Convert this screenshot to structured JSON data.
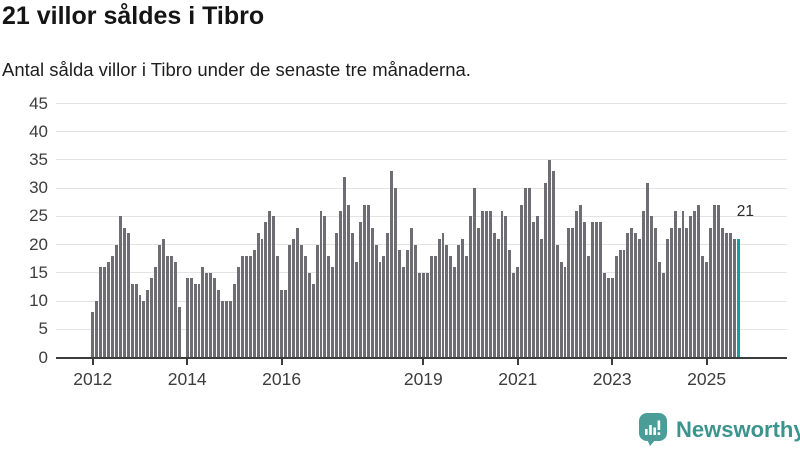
{
  "header": {
    "title": "21 villor såldes i Tibro",
    "subtitle": "Antal sålda villor i Tibro under de senaste tre månaderna."
  },
  "footer": {
    "brand": "Newsworthy",
    "logo_icon": "newsworthy-bar-chart-speech-bubble-icon"
  },
  "colors": {
    "bar": "#6e6d73",
    "highlight": "#12a19f",
    "gridline": "#e3e3e3",
    "axis": "#3d3d3d",
    "title_text": "#151515",
    "brand_teal": "#3d948f",
    "logo_bubble": "#4a9e97"
  },
  "chart_data": {
    "type": "bar",
    "title": "21 villor såldes i Tibro",
    "subtitle": "Antal sålda villor i Tibro under de senaste tre månaderna.",
    "xlabel": "",
    "ylabel": "",
    "ylim": [
      0,
      45
    ],
    "grid": "horizontal",
    "y_ticks": [
      0,
      5,
      10,
      15,
      20,
      25,
      30,
      35,
      40,
      45
    ],
    "x_tick_labels": [
      "2012",
      "2014",
      "2016",
      "2019",
      "2021",
      "2023",
      "2025"
    ],
    "x_tick_month_indices": [
      0,
      24,
      48,
      84,
      108,
      132,
      156
    ],
    "start_year": 2012,
    "values": [
      8,
      10,
      16,
      16,
      17,
      18,
      20,
      25,
      23,
      22,
      13,
      13,
      11,
      10,
      12,
      14,
      16,
      20,
      21,
      18,
      18,
      17,
      9,
      0,
      14,
      14,
      13,
      13,
      16,
      15,
      15,
      14,
      12,
      10,
      10,
      10,
      13,
      16,
      18,
      18,
      18,
      19,
      22,
      21,
      24,
      26,
      25,
      18,
      12,
      12,
      20,
      21,
      23,
      20,
      18,
      15,
      13,
      20,
      26,
      25,
      18,
      16,
      22,
      26,
      32,
      27,
      22,
      17,
      24,
      27,
      27,
      23,
      20,
      17,
      18,
      22,
      33,
      30,
      19,
      16,
      19,
      23,
      20,
      15,
      15,
      15,
      18,
      18,
      21,
      22,
      20,
      18,
      16,
      20,
      21,
      18,
      25,
      30,
      23,
      26,
      26,
      26,
      22,
      21,
      26,
      25,
      19,
      15,
      16,
      27,
      30,
      30,
      24,
      25,
      21,
      31,
      35,
      33,
      20,
      17,
      16,
      23,
      23,
      26,
      27,
      24,
      18,
      24,
      24,
      24,
      15,
      14,
      14,
      18,
      19,
      19,
      22,
      23,
      22,
      21,
      26,
      31,
      25,
      23,
      17,
      15,
      21,
      23,
      26,
      23,
      26,
      23,
      25,
      26,
      27,
      18,
      17,
      23,
      27,
      27,
      23,
      22,
      22,
      21,
      21
    ],
    "highlight_index": 164,
    "highlight_value_label": "21",
    "legend": "none"
  }
}
